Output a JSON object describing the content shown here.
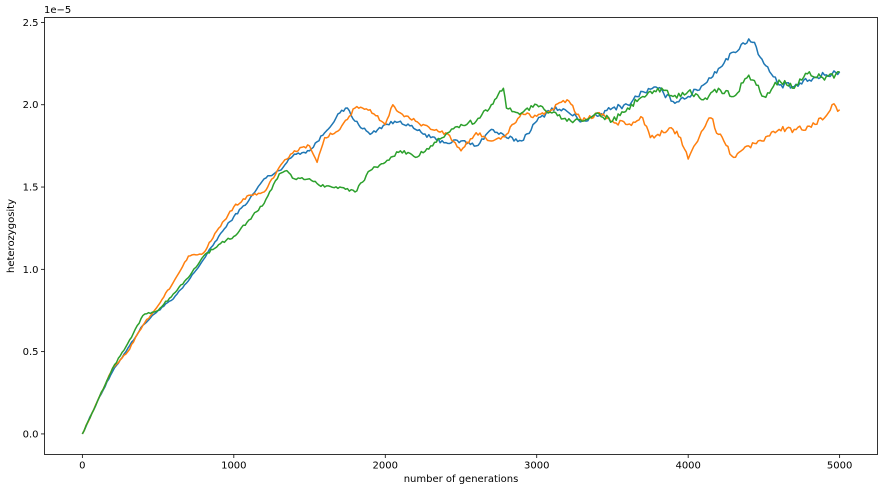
{
  "chart_data": {
    "type": "line",
    "title": "",
    "xlabel": "number of generations",
    "ylabel": "heterozygosity",
    "y_offset_text": "1e−5",
    "y_multiplier": 1e-05,
    "xlim": [
      -250,
      5250
    ],
    "ylim": [
      -0.125,
      2.53
    ],
    "x_ticks": [
      0,
      1000,
      2000,
      3000,
      4000,
      5000
    ],
    "x_tick_labels": [
      "0",
      "1000",
      "2000",
      "3000",
      "4000",
      "5000"
    ],
    "y_ticks": [
      0.0,
      0.5,
      1.0,
      1.5,
      2.0,
      2.5
    ],
    "y_tick_labels": [
      "0.0",
      "0.5",
      "1.0",
      "1.5",
      "2.0",
      "2.5"
    ],
    "grid": false,
    "legend": "none",
    "series": [
      {
        "color": "#1f77b4",
        "x": [
          0,
          100,
          200,
          300,
          400,
          500,
          600,
          700,
          800,
          900,
          1000,
          1100,
          1200,
          1300,
          1400,
          1500,
          1600,
          1700,
          1750,
          1800,
          1900,
          2000,
          2100,
          2200,
          2300,
          2400,
          2500,
          2600,
          2700,
          2800,
          2900,
          3000,
          3100,
          3200,
          3300,
          3400,
          3500,
          3600,
          3700,
          3800,
          3900,
          4000,
          4100,
          4200,
          4300,
          4400,
          4450,
          4500,
          4600,
          4700,
          4800,
          4900,
          5000
        ],
        "y": [
          0.0,
          0.2,
          0.38,
          0.52,
          0.66,
          0.75,
          0.82,
          0.93,
          1.06,
          1.2,
          1.32,
          1.42,
          1.55,
          1.6,
          1.7,
          1.72,
          1.83,
          1.95,
          1.98,
          1.9,
          1.82,
          1.88,
          1.9,
          1.85,
          1.8,
          1.77,
          1.78,
          1.75,
          1.85,
          1.8,
          1.78,
          1.9,
          1.98,
          1.96,
          1.9,
          1.93,
          1.98,
          2.0,
          2.08,
          2.1,
          2.02,
          2.05,
          2.12,
          2.22,
          2.32,
          2.4,
          2.35,
          2.25,
          2.12,
          2.11,
          2.15,
          2.18,
          2.2
        ]
      },
      {
        "color": "#ff7f0e",
        "x": [
          0,
          100,
          200,
          300,
          400,
          500,
          600,
          700,
          800,
          900,
          1000,
          1100,
          1200,
          1300,
          1400,
          1500,
          1550,
          1600,
          1700,
          1800,
          1900,
          2000,
          2050,
          2100,
          2200,
          2300,
          2400,
          2500,
          2600,
          2700,
          2800,
          2900,
          3000,
          3100,
          3200,
          3300,
          3400,
          3500,
          3600,
          3700,
          3750,
          3800,
          3900,
          3950,
          4000,
          4100,
          4150,
          4200,
          4300,
          4350,
          4400,
          4500,
          4600,
          4700,
          4800,
          4900,
          4950,
          5000
        ],
        "y": [
          0.0,
          0.2,
          0.4,
          0.5,
          0.66,
          0.78,
          0.92,
          1.08,
          1.1,
          1.25,
          1.38,
          1.45,
          1.47,
          1.62,
          1.72,
          1.75,
          1.65,
          1.8,
          1.85,
          1.98,
          1.97,
          1.88,
          2.0,
          1.95,
          1.9,
          1.85,
          1.83,
          1.72,
          1.83,
          1.78,
          1.82,
          1.95,
          1.93,
          1.97,
          2.03,
          1.9,
          1.95,
          1.9,
          1.88,
          1.92,
          1.8,
          1.82,
          1.85,
          1.8,
          1.67,
          1.85,
          1.92,
          1.82,
          1.68,
          1.72,
          1.75,
          1.78,
          1.85,
          1.85,
          1.87,
          1.92,
          2.0,
          1.97
        ]
      },
      {
        "color": "#2ca02c",
        "x": [
          0,
          100,
          200,
          300,
          400,
          500,
          600,
          700,
          800,
          900,
          1000,
          1100,
          1200,
          1300,
          1350,
          1400,
          1500,
          1600,
          1700,
          1800,
          1900,
          2000,
          2100,
          2200,
          2300,
          2400,
          2500,
          2600,
          2700,
          2780,
          2800,
          2900,
          3000,
          3100,
          3200,
          3300,
          3400,
          3500,
          3600,
          3700,
          3800,
          3900,
          4000,
          4100,
          4200,
          4300,
          4400,
          4500,
          4600,
          4700,
          4800,
          4900,
          5000
        ],
        "y": [
          0.0,
          0.2,
          0.4,
          0.55,
          0.72,
          0.75,
          0.85,
          0.95,
          1.08,
          1.15,
          1.2,
          1.3,
          1.4,
          1.58,
          1.6,
          1.55,
          1.55,
          1.5,
          1.5,
          1.47,
          1.6,
          1.65,
          1.72,
          1.68,
          1.75,
          1.82,
          1.88,
          1.9,
          2.0,
          2.1,
          1.98,
          1.95,
          2.0,
          1.95,
          1.9,
          1.9,
          1.95,
          1.9,
          1.98,
          2.05,
          2.1,
          2.05,
          2.08,
          2.03,
          2.1,
          2.05,
          2.18,
          2.05,
          2.15,
          2.1,
          2.2,
          2.15,
          2.2
        ]
      }
    ]
  }
}
